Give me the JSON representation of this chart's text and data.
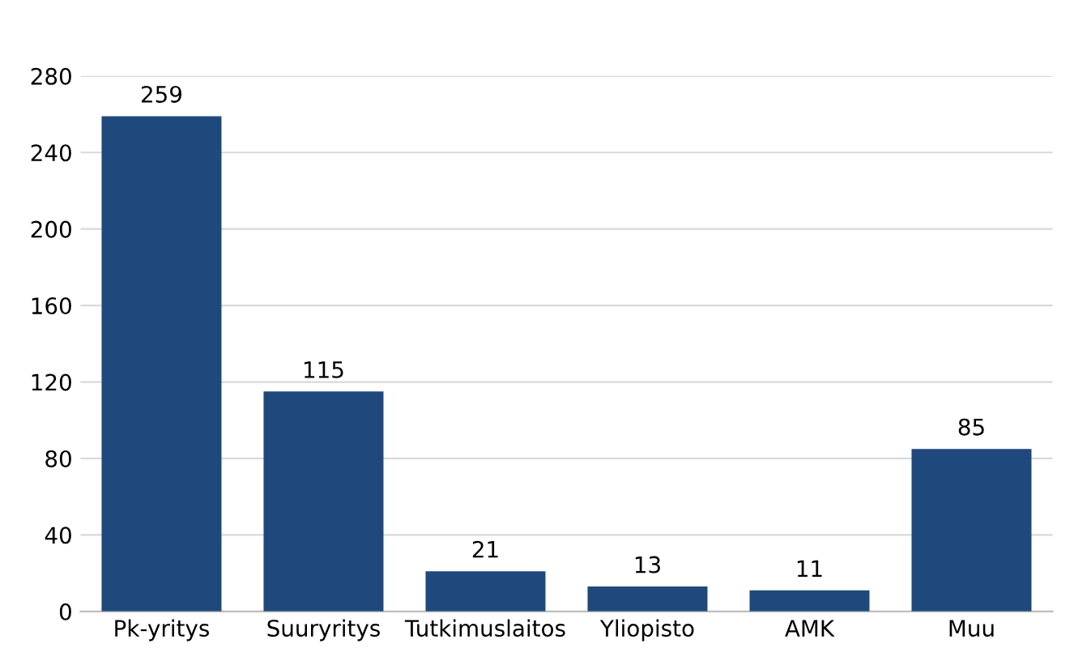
{
  "chart_data": {
    "type": "bar",
    "categories": [
      "Pk-yritys",
      "Suuryritys",
      "Tutkimuslaitos",
      "Yliopisto",
      "AMK",
      "Muu"
    ],
    "values": [
      259,
      115,
      21,
      13,
      11,
      85
    ],
    "color": "#1f497d",
    "ylim": [
      0,
      280
    ],
    "yticks": [
      0,
      40,
      80,
      120,
      160,
      200,
      240,
      280
    ],
    "grid": "y",
    "data_labels": true
  }
}
